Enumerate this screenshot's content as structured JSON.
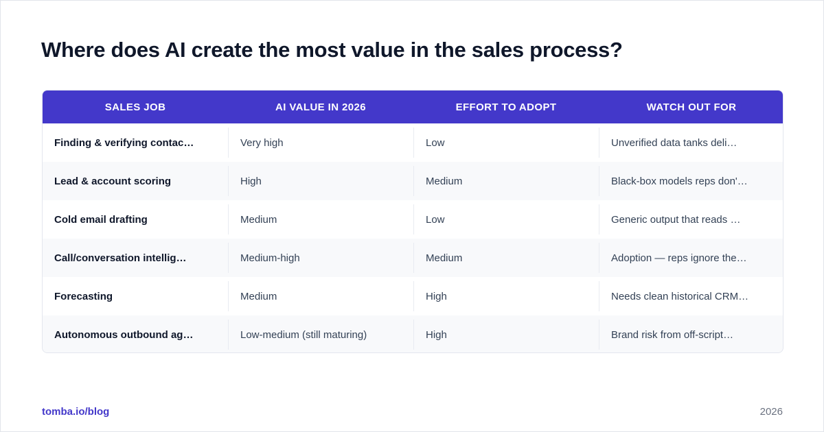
{
  "title": "Where does AI create the most value in the sales process?",
  "table": {
    "headers": [
      "SALES JOB",
      "AI VALUE IN 2026",
      "EFFORT TO ADOPT",
      "WATCH OUT FOR"
    ],
    "rows": [
      [
        "Finding & verifying contac…",
        "Very high",
        "Low",
        "Unverified data tanks deli…"
      ],
      [
        "Lead & account scoring",
        "High",
        "Medium",
        "Black-box models reps don'…"
      ],
      [
        "Cold email drafting",
        "Medium",
        "Low",
        "Generic output that reads …"
      ],
      [
        "Call/conversation intellig…",
        "Medium-high",
        "Medium",
        "Adoption — reps ignore the…"
      ],
      [
        "Forecasting",
        "Medium",
        "High",
        "Needs clean historical CRM…"
      ],
      [
        "Autonomous outbound agents",
        "Low-medium (still maturing)",
        "High",
        "Brand risk from off-script…"
      ]
    ]
  },
  "footer": {
    "link": "tomba.io/blog",
    "year": "2026"
  },
  "colors": {
    "header_bg": "#4338ca",
    "accent": "#4338ca",
    "title": "#0f172a",
    "row_alt": "#f8f9fb"
  }
}
